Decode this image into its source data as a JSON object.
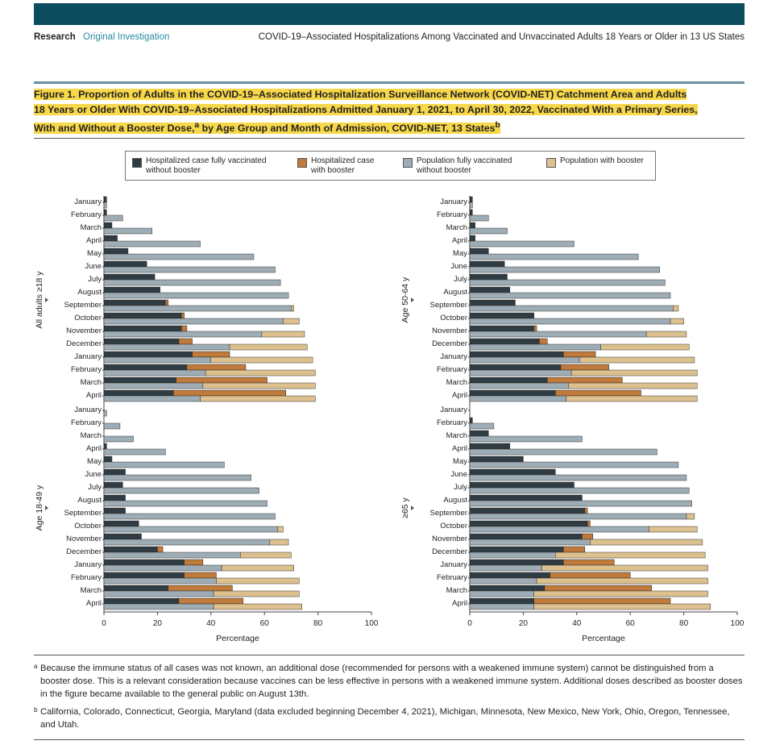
{
  "header": {
    "section": "Research",
    "subsection": "Original Investigation",
    "running_title": "COVID-19–Associated Hospitalizations Among Vaccinated and Unvaccinated Adults 18 Years or Older in 13 US States"
  },
  "figure": {
    "title_line1": "Figure 1. Proportion of Adults in the COVID-19–Associated Hospitalization Surveillance Network (COVID-NET) Catchment Area and Adults",
    "title_line2": "18 Years or Older With COVID-19–Associated Hospitalizations Admitted January 1, 2021, to April 30, 2022, Vaccinated With a Primary Series,",
    "title_line3a": "With and Without a Booster Dose,",
    "title_sup_a": "a",
    "title_line3b": " by Age Group and Month of Admission, COVID-NET, 13 States",
    "title_sup_b": "b"
  },
  "legend": [
    {
      "label_line1": "Hospitalized case fully vaccinated",
      "label_line2": "without booster",
      "color": "#2f3c43"
    },
    {
      "label_line1": "Hospitalized case",
      "label_line2": "with booster",
      "color": "#c07a3c"
    },
    {
      "label_line1": "Population fully vaccinated",
      "label_line2": "without booster",
      "color": "#9eacb5"
    },
    {
      "label_line1": "Population with booster",
      "label_line2": "",
      "color": "#dcc08e"
    }
  ],
  "colors": {
    "case_no_booster": "#2f3c43",
    "case_booster": "#c07a3c",
    "pop_no_booster": "#9eacb5",
    "pop_booster": "#dcc08e"
  },
  "chart_data": {
    "type": "bar",
    "orientation": "horizontal",
    "stacking": "case bars and population bars stacked per month",
    "months": [
      "January",
      "February",
      "March",
      "April",
      "May",
      "June",
      "July",
      "August",
      "September",
      "October",
      "November",
      "December",
      "January",
      "February",
      "March",
      "April"
    ],
    "xlabel": "Percentage",
    "xlim": [
      0,
      100
    ],
    "xticks": [
      "0",
      "20",
      "40",
      "60",
      "80",
      "100"
    ],
    "panels": [
      {
        "group": "All adults ≥18 y",
        "case_no_booster": [
          1,
          1,
          3,
          5,
          9,
          16,
          19,
          21,
          23,
          29,
          29,
          28,
          33,
          31,
          27,
          26
        ],
        "case_booster": [
          0,
          0,
          0,
          0,
          0,
          0,
          0,
          0,
          1,
          1,
          2,
          5,
          14,
          22,
          34,
          42
        ],
        "pop_no_booster": [
          1,
          7,
          18,
          36,
          56,
          64,
          66,
          69,
          70,
          67,
          59,
          47,
          40,
          38,
          37,
          36
        ],
        "pop_booster": [
          0,
          0,
          0,
          0,
          0,
          0,
          0,
          0,
          1,
          6,
          16,
          29,
          38,
          41,
          42,
          43
        ]
      },
      {
        "group": "Age 50-64 y",
        "case_no_booster": [
          1,
          1,
          2,
          2,
          7,
          13,
          14,
          15,
          17,
          24,
          24,
          26,
          35,
          34,
          29,
          32
        ],
        "case_booster": [
          0,
          0,
          0,
          0,
          0,
          0,
          0,
          0,
          0,
          0,
          1,
          3,
          12,
          18,
          28,
          32
        ],
        "pop_no_booster": [
          1,
          7,
          14,
          39,
          63,
          71,
          73,
          75,
          76,
          75,
          66,
          49,
          41,
          38,
          37,
          36
        ],
        "pop_booster": [
          0,
          0,
          0,
          0,
          0,
          0,
          0,
          0,
          2,
          5,
          15,
          33,
          43,
          47,
          48,
          49
        ]
      },
      {
        "group": "Age 18-49 y",
        "case_no_booster": [
          0,
          0,
          0,
          1,
          3,
          8,
          7,
          8,
          8,
          13,
          14,
          20,
          30,
          30,
          24,
          28
        ],
        "case_booster": [
          0,
          0,
          0,
          0,
          0,
          0,
          0,
          0,
          0,
          0,
          0,
          2,
          7,
          12,
          24,
          24
        ],
        "pop_no_booster": [
          1,
          6,
          11,
          23,
          45,
          55,
          58,
          61,
          64,
          65,
          62,
          51,
          44,
          42,
          41,
          41
        ],
        "pop_booster": [
          0,
          0,
          0,
          0,
          0,
          0,
          0,
          0,
          0,
          2,
          7,
          19,
          27,
          31,
          32,
          33
        ]
      },
      {
        "group": "≥65 y",
        "case_no_booster": [
          0,
          1,
          7,
          15,
          20,
          32,
          39,
          42,
          43,
          44,
          42,
          35,
          35,
          30,
          28,
          24
        ],
        "case_booster": [
          0,
          0,
          0,
          0,
          0,
          0,
          0,
          0,
          1,
          1,
          4,
          8,
          19,
          30,
          40,
          51
        ],
        "pop_no_booster": [
          0,
          9,
          42,
          70,
          78,
          81,
          82,
          83,
          81,
          67,
          45,
          32,
          27,
          25,
          24,
          24
        ],
        "pop_booster": [
          0,
          0,
          0,
          0,
          0,
          0,
          0,
          0,
          3,
          18,
          42,
          56,
          62,
          64,
          65,
          66
        ]
      }
    ]
  },
  "footnotes": [
    {
      "marker": "a",
      "text": "Because the immune status of all cases was not known, an additional dose (recommended for persons with a weakened immune system) cannot be distinguished from a booster dose. This is a relevant consideration because vaccines can be less effective in persons with a weakened immune system. Additional doses described as booster doses in the figure became available to the general public on August 13th."
    },
    {
      "marker": "b",
      "text": "California, Colorado, Connecticut, Georgia, Maryland (data excluded beginning December 4, 2021), Michigan, Minnesota, New Mexico, New York, Ohio, Oregon, Tennessee, and Utah."
    }
  ]
}
